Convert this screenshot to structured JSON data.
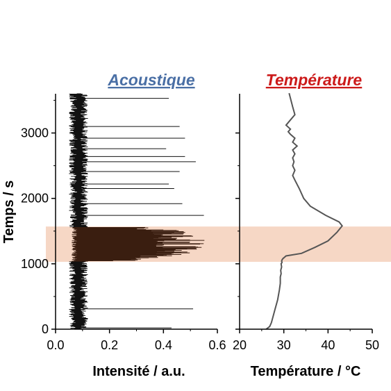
{
  "chart_data": [
    {
      "type": "line",
      "title": "Acoustique",
      "title_color": "#4a6fa5",
      "xlabel": "Intensité / a.u.",
      "ylabel": "Temps / s",
      "xlim": [
        0,
        0.6
      ],
      "ylim": [
        0,
        3600
      ],
      "xticks": [
        "0.0",
        "0.2",
        "0.4",
        "0.6"
      ],
      "yticks": [
        "0",
        "1000",
        "2000",
        "3000"
      ],
      "grid": false,
      "baseline_range": [
        0.05,
        0.12
      ],
      "spikes": [
        {
          "t": 20,
          "value": 0.43
        },
        {
          "t": 310,
          "value": 0.51
        },
        {
          "t": 1740,
          "value": 0.55
        },
        {
          "t": 1920,
          "value": 0.47
        },
        {
          "t": 2150,
          "value": 0.44
        },
        {
          "t": 2220,
          "value": 0.42
        },
        {
          "t": 2410,
          "value": 0.46
        },
        {
          "t": 2560,
          "value": 0.52
        },
        {
          "t": 2640,
          "value": 0.48
        },
        {
          "t": 2760,
          "value": 0.41
        },
        {
          "t": 2920,
          "value": 0.48
        },
        {
          "t": 3100,
          "value": 0.46
        },
        {
          "t": 3530,
          "value": 0.42
        }
      ],
      "burst": {
        "t_start": 1040,
        "t_end": 1560,
        "max_value": 0.57
      },
      "line_color": "#111111",
      "burst_color": "#3a1e10"
    },
    {
      "type": "line",
      "title": "Température",
      "title_color": "#cc1a1a",
      "xlabel": "Température / °C",
      "xlim": [
        20,
        50
      ],
      "ylim": [
        0,
        3600
      ],
      "xticks": [
        "20",
        "30",
        "40",
        "50"
      ],
      "grid": false,
      "line_color": "#555555",
      "series": [
        {
          "x": [
            26.0,
            26.8,
            27.2,
            28.0,
            28.6,
            29.0,
            29.2,
            29.2,
            29.4,
            29.3,
            29.5,
            29.4,
            29.6,
            29.5,
            29.6,
            29.8,
            30.5,
            34.0,
            37.0,
            40.0,
            42.0,
            43.2,
            42.5,
            39.5,
            36.0,
            34.5,
            33.5,
            32.5,
            32.0,
            32.5,
            32.0,
            32.3,
            32.0,
            32.5,
            32.0,
            33.0,
            32.0,
            32.5,
            31.5,
            31.0,
            31.5,
            30.5,
            31.5,
            32.5,
            32.0,
            31.2
          ],
          "y": [
            0,
            40,
            100,
            300,
            450,
            600,
            700,
            800,
            850,
            900,
            950,
            1000,
            1020,
            1040,
            1060,
            1080,
            1120,
            1160,
            1250,
            1350,
            1480,
            1580,
            1640,
            1740,
            1880,
            2000,
            2150,
            2280,
            2350,
            2430,
            2500,
            2560,
            2620,
            2680,
            2740,
            2800,
            2860,
            2920,
            2980,
            3020,
            3060,
            3120,
            3200,
            3280,
            3400,
            3610
          ]
        }
      ]
    }
  ],
  "highlight_band": {
    "t_start": 1030,
    "t_end": 1570,
    "color": "#f6d7c5"
  }
}
